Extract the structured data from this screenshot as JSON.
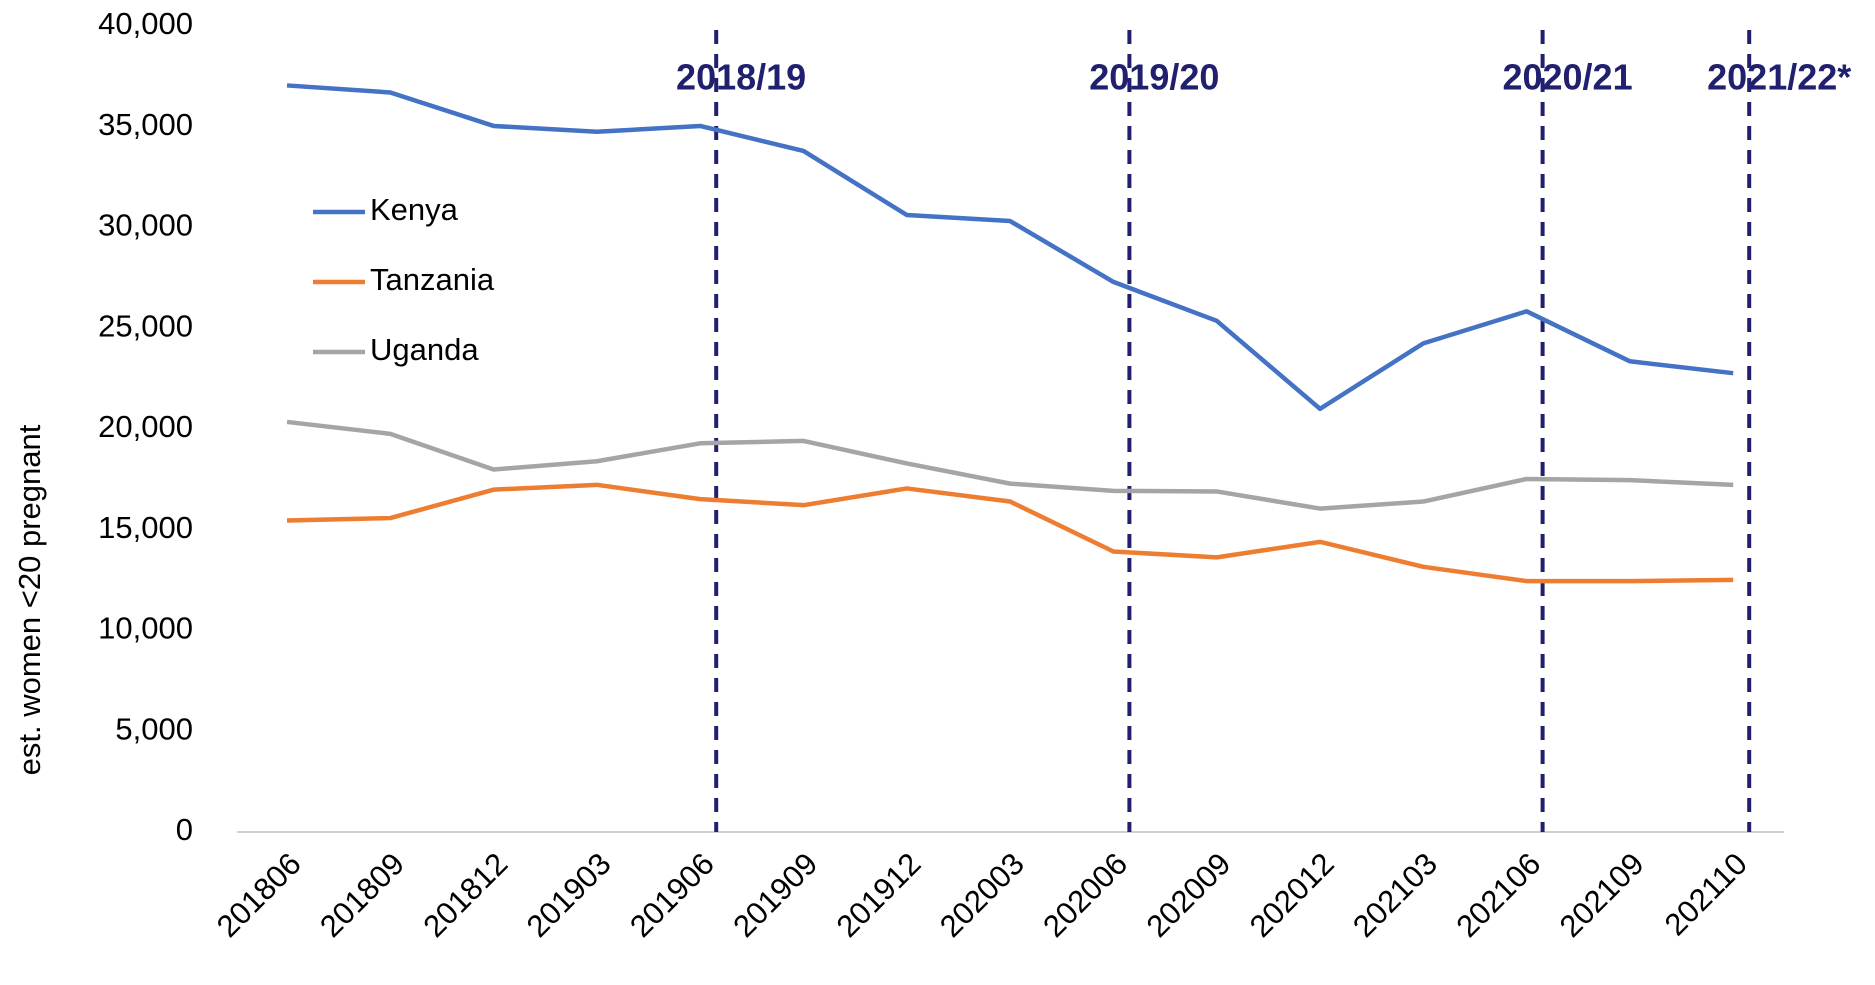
{
  "chart_data": {
    "type": "line",
    "y_label": "est. women <20 pregnant",
    "categories": [
      "201806",
      "201809",
      "201812",
      "201903",
      "201906",
      "201909",
      "201912",
      "202003",
      "202006",
      "202009",
      "202012",
      "202103",
      "202106",
      "202109",
      "202110"
    ],
    "series": [
      {
        "name": "Kenya",
        "color": "#4472c4",
        "values": [
          37050,
          36700,
          35040,
          34750,
          35040,
          33800,
          30620,
          30320,
          27300,
          25370,
          21000,
          24250,
          25840,
          23360,
          22770
        ]
      },
      {
        "name": "Tanzania",
        "color": "#ed7d31",
        "values": [
          15460,
          15580,
          16990,
          17230,
          16520,
          16220,
          17050,
          16400,
          13920,
          13630,
          14400,
          13160,
          12450,
          12450,
          12510
        ]
      },
      {
        "name": "Uganda",
        "color": "#a5a5a5",
        "values": [
          20350,
          19760,
          17990,
          18400,
          19290,
          19410,
          18290,
          17290,
          16930,
          16900,
          16050,
          16400,
          17520,
          17460,
          17230
        ]
      }
    ],
    "annotations": [
      {
        "text": "2018/19",
        "category": 4
      },
      {
        "text": "2019/20",
        "category": 8
      },
      {
        "text": "2020/21",
        "category": 12
      },
      {
        "text": "2021/22*",
        "category": 14
      }
    ],
    "ylim": [
      0,
      40000
    ],
    "yticks": [
      0,
      {
        "value": 5000,
        "label": "5,000"
      },
      {
        "value": 10000,
        "label": "10,000"
      },
      {
        "value": 15000,
        "label": "15,000"
      },
      {
        "value": 20000,
        "label": "20,000"
      },
      {
        "value": 25000,
        "label": "25,000"
      },
      {
        "value": 30000,
        "label": "30,000"
      },
      {
        "value": 35000,
        "label": "35,000"
      },
      {
        "value": 40000,
        "label": "40,000"
      }
    ],
    "grid": false
  }
}
